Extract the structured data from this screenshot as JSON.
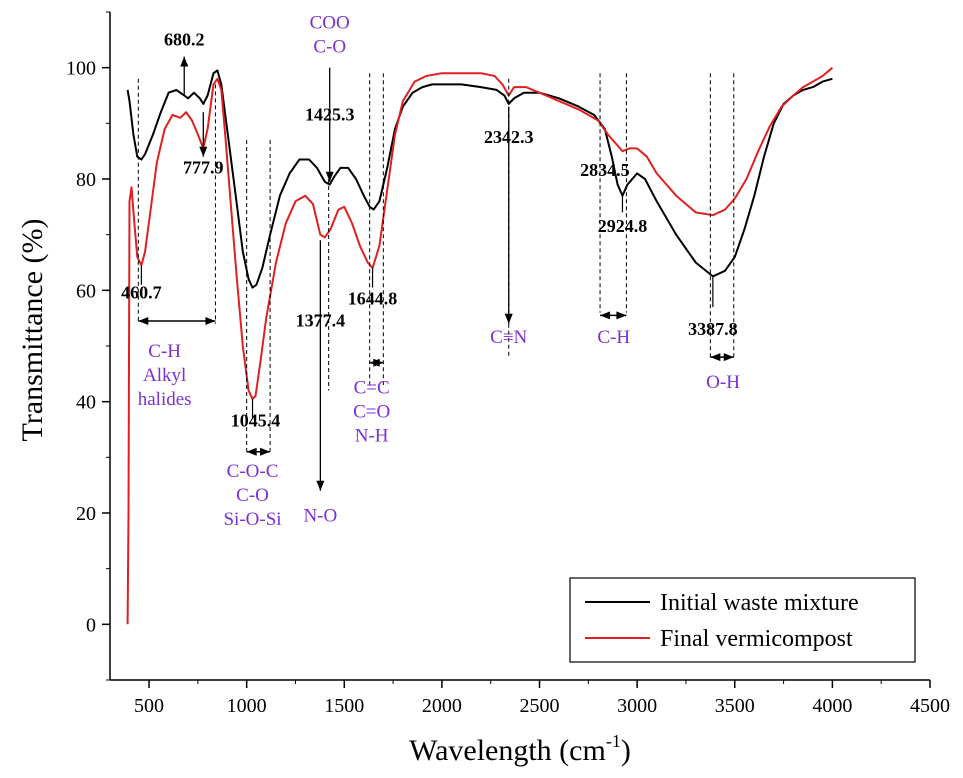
{
  "chart_data": {
    "type": "line",
    "xlabel": "Wavelength (cm",
    "xlabel_sup": "-1",
    "xlabel_close": ")",
    "ylabel": "Transmittance (%)",
    "xlim": [
      300,
      4500
    ],
    "ylim": [
      -10,
      110
    ],
    "xticks": [
      500,
      1000,
      1500,
      2000,
      2500,
      3000,
      3500,
      4000,
      4500
    ],
    "yticks": [
      0,
      20,
      40,
      60,
      80,
      100
    ],
    "legend_position": "bottom-right",
    "series": [
      {
        "name": "Initial waste mixture",
        "color": "#000000",
        "points": [
          [
            390,
            96
          ],
          [
            400,
            94
          ],
          [
            420,
            88
          ],
          [
            440,
            84
          ],
          [
            460.7,
            83.5
          ],
          [
            480,
            84.5
          ],
          [
            520,
            88
          ],
          [
            560,
            92
          ],
          [
            600,
            95.5
          ],
          [
            640,
            96
          ],
          [
            680.2,
            95
          ],
          [
            700,
            94.5
          ],
          [
            730,
            95.5
          ],
          [
            760,
            94.5
          ],
          [
            777.9,
            93.5
          ],
          [
            800,
            95
          ],
          [
            830,
            99
          ],
          [
            850,
            99.5
          ],
          [
            870,
            97
          ],
          [
            900,
            89
          ],
          [
            940,
            78
          ],
          [
            980,
            67
          ],
          [
            1010,
            62
          ],
          [
            1030,
            60.5
          ],
          [
            1050,
            61
          ],
          [
            1080,
            64
          ],
          [
            1120,
            70
          ],
          [
            1170,
            77
          ],
          [
            1220,
            81
          ],
          [
            1270,
            83.5
          ],
          [
            1320,
            83.5
          ],
          [
            1360,
            82
          ],
          [
            1400,
            79.5
          ],
          [
            1425.3,
            79
          ],
          [
            1450,
            80.5
          ],
          [
            1480,
            82
          ],
          [
            1520,
            82
          ],
          [
            1560,
            80
          ],
          [
            1600,
            77
          ],
          [
            1630,
            75
          ],
          [
            1650,
            74.5
          ],
          [
            1680,
            76
          ],
          [
            1720,
            82
          ],
          [
            1760,
            89
          ],
          [
            1800,
            93
          ],
          [
            1850,
            95.5
          ],
          [
            1900,
            96.5
          ],
          [
            1950,
            97
          ],
          [
            2000,
            97
          ],
          [
            2100,
            97
          ],
          [
            2200,
            96.5
          ],
          [
            2280,
            96
          ],
          [
            2320,
            95
          ],
          [
            2342.3,
            93.5
          ],
          [
            2370,
            94.5
          ],
          [
            2420,
            95.5
          ],
          [
            2500,
            95.5
          ],
          [
            2600,
            94.5
          ],
          [
            2700,
            93
          ],
          [
            2780,
            91.5
          ],
          [
            2834.5,
            89
          ],
          [
            2870,
            84
          ],
          [
            2900,
            79
          ],
          [
            2924.8,
            77
          ],
          [
            2950,
            79
          ],
          [
            3000,
            81
          ],
          [
            3040,
            80
          ],
          [
            3100,
            76
          ],
          [
            3200,
            70
          ],
          [
            3300,
            65
          ],
          [
            3387.8,
            62.5
          ],
          [
            3450,
            63.5
          ],
          [
            3500,
            66
          ],
          [
            3550,
            71
          ],
          [
            3600,
            77
          ],
          [
            3650,
            84
          ],
          [
            3700,
            90
          ],
          [
            3750,
            93.5
          ],
          [
            3800,
            95
          ],
          [
            3850,
            96
          ],
          [
            3900,
            96.5
          ],
          [
            3950,
            97.5
          ],
          [
            4000,
            98
          ]
        ]
      },
      {
        "name": "Final vermicompost",
        "color": "#e02020",
        "points": [
          [
            390,
            0
          ],
          [
            395,
            20
          ],
          [
            400,
            76
          ],
          [
            410,
            78.5
          ],
          [
            425,
            72
          ],
          [
            440,
            66
          ],
          [
            460.7,
            64.5
          ],
          [
            480,
            67
          ],
          [
            510,
            75
          ],
          [
            540,
            83
          ],
          [
            580,
            89
          ],
          [
            620,
            91.5
          ],
          [
            660,
            91
          ],
          [
            690,
            92
          ],
          [
            720,
            90.5
          ],
          [
            750,
            88
          ],
          [
            777.9,
            85.5
          ],
          [
            800,
            89
          ],
          [
            830,
            97
          ],
          [
            850,
            98
          ],
          [
            870,
            96
          ],
          [
            890,
            88
          ],
          [
            920,
            75
          ],
          [
            950,
            62
          ],
          [
            980,
            50
          ],
          [
            1010,
            42
          ],
          [
            1030,
            40.5
          ],
          [
            1045.4,
            41
          ],
          [
            1070,
            47
          ],
          [
            1100,
            55
          ],
          [
            1150,
            65
          ],
          [
            1200,
            72
          ],
          [
            1250,
            76
          ],
          [
            1300,
            77
          ],
          [
            1340,
            75.5
          ],
          [
            1377.4,
            70
          ],
          [
            1400,
            69.5
          ],
          [
            1430,
            71
          ],
          [
            1470,
            74.5
          ],
          [
            1500,
            75
          ],
          [
            1540,
            72
          ],
          [
            1580,
            68
          ],
          [
            1620,
            65
          ],
          [
            1644.8,
            64
          ],
          [
            1680,
            68
          ],
          [
            1720,
            78
          ],
          [
            1760,
            88
          ],
          [
            1800,
            94
          ],
          [
            1860,
            97.5
          ],
          [
            1920,
            98.5
          ],
          [
            2000,
            99
          ],
          [
            2100,
            99
          ],
          [
            2200,
            99
          ],
          [
            2270,
            98.5
          ],
          [
            2310,
            97
          ],
          [
            2342.3,
            95
          ],
          [
            2370,
            96.5
          ],
          [
            2430,
            96.5
          ],
          [
            2500,
            95.5
          ],
          [
            2600,
            94
          ],
          [
            2700,
            92.5
          ],
          [
            2800,
            90.5
          ],
          [
            2850,
            88
          ],
          [
            2900,
            86
          ],
          [
            2924.8,
            85
          ],
          [
            2960,
            85.5
          ],
          [
            3000,
            85.5
          ],
          [
            3050,
            84
          ],
          [
            3100,
            81
          ],
          [
            3200,
            77
          ],
          [
            3300,
            74
          ],
          [
            3387.8,
            73.5
          ],
          [
            3450,
            74.5
          ],
          [
            3500,
            76.5
          ],
          [
            3560,
            80
          ],
          [
            3620,
            85
          ],
          [
            3680,
            89.5
          ],
          [
            3740,
            93
          ],
          [
            3800,
            95
          ],
          [
            3850,
            96.5
          ],
          [
            3900,
            97.5
          ],
          [
            3950,
            98.5
          ],
          [
            4000,
            100
          ]
        ]
      }
    ],
    "peak_labels": [
      {
        "text": "680.2",
        "x": 680.2,
        "y": 104
      },
      {
        "text": "777.9",
        "x": 777.9,
        "y": 81
      },
      {
        "text": "460.7",
        "x": 460.7,
        "y": 58.5
      },
      {
        "text": "1045.4",
        "x": 1045.4,
        "y": 35.5
      },
      {
        "text": "1425.3",
        "x": 1425.3,
        "y": 90.5
      },
      {
        "text": "1377.4",
        "x": 1377.4,
        "y": 53.5
      },
      {
        "text": "1644.8",
        "x": 1644.8,
        "y": 57.5
      },
      {
        "text": "2342.3",
        "x": 2342.3,
        "y": 86.5
      },
      {
        "text": "2834.5",
        "x": 2834.5,
        "y": 80.5
      },
      {
        "text": "2924.8",
        "x": 2924.8,
        "y": 70.5
      },
      {
        "text": "3387.8",
        "x": 3387.8,
        "y": 52
      }
    ],
    "group_labels": [
      {
        "lines": [
          "COO",
          "C-O"
        ],
        "x": 1425.3,
        "y": 107
      },
      {
        "lines": [
          "C-H",
          "Alkyl",
          "halides"
        ],
        "x": 580,
        "y": 48
      },
      {
        "lines": [
          "C-O-C",
          "C-O",
          "Si-O-Si"
        ],
        "x": 1030,
        "y": 26.5
      },
      {
        "lines": [
          "N-O"
        ],
        "x": 1377.4,
        "y": 18.5
      },
      {
        "lines": [
          "C=C",
          "C=O",
          "N-H"
        ],
        "x": 1640,
        "y": 41.5
      },
      {
        "lines": [
          "C≡N"
        ],
        "x": 2342.3,
        "y": 50.5
      },
      {
        "lines": [
          "C-H"
        ],
        "x": 2880,
        "y": 50.5
      },
      {
        "lines": [
          "O-H"
        ],
        "x": 3440,
        "y": 42.5
      }
    ]
  }
}
